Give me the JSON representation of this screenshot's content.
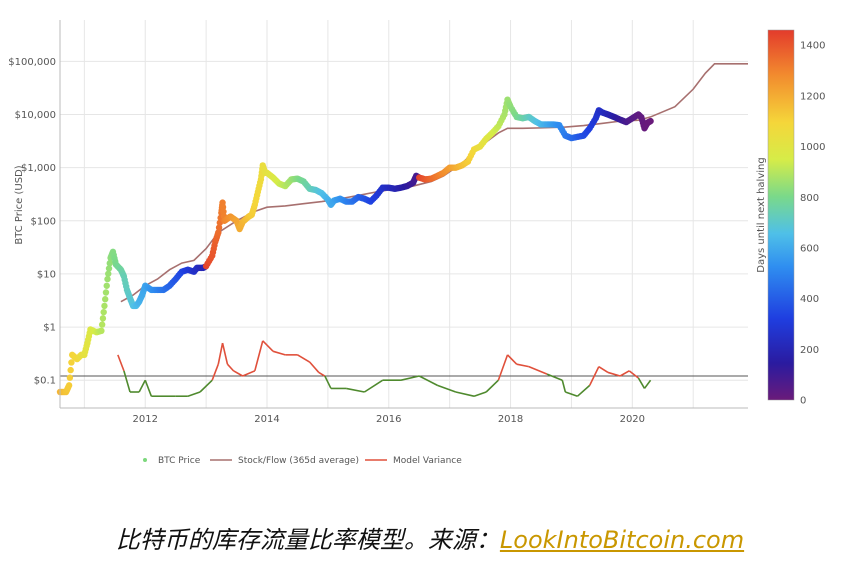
{
  "caption": {
    "text": "比特币的库存流量比率模型。来源：",
    "link": "LookIntoBitcoin.com"
  },
  "chart_data": {
    "type": "scatter",
    "title": "",
    "xlabel": "",
    "ylabel": "BTC Price (USD)",
    "y2label": "Days until next halving",
    "yscale": "log",
    "ylim": [
      0.03,
      600000
    ],
    "xlim": [
      2010.6,
      2021.9
    ],
    "x_ticks": [
      2012,
      2014,
      2016,
      2018,
      2020
    ],
    "x_tick_labels": [
      "2012",
      "2014",
      "2016",
      "2018",
      "2020"
    ],
    "y_ticks": [
      0.1,
      1,
      10,
      100,
      1000,
      10000,
      100000
    ],
    "y_tick_labels": [
      "$0.1",
      "$1",
      "$10",
      "$100",
      "$1,000",
      "$10,000",
      "$100,000"
    ],
    "colorbar": {
      "label": "Days until next halving",
      "range": [
        0,
        1460
      ],
      "ticks": [
        0,
        200,
        400,
        600,
        800,
        1000,
        1200,
        1400
      ]
    },
    "reference_line_y": 0.12,
    "grid": true,
    "legend_position": "bottom",
    "series": [
      {
        "name": "BTC Price",
        "type": "scatter",
        "color": "#7dd87d",
        "points": [
          [
            2010.6,
            0.06,
            1180
          ],
          [
            2010.7,
            0.06,
            1140
          ],
          [
            2010.75,
            0.08,
            1120
          ],
          [
            2010.8,
            0.3,
            1100
          ],
          [
            2010.88,
            0.25,
            1080
          ],
          [
            2010.95,
            0.3,
            1050
          ],
          [
            2011.0,
            0.3,
            1020
          ],
          [
            2011.05,
            0.5,
            1000
          ],
          [
            2011.1,
            0.9,
            980
          ],
          [
            2011.2,
            0.8,
            940
          ],
          [
            2011.28,
            0.85,
            900
          ],
          [
            2011.33,
            2.5,
            880
          ],
          [
            2011.38,
            8,
            860
          ],
          [
            2011.43,
            20,
            840
          ],
          [
            2011.47,
            26,
            820
          ],
          [
            2011.52,
            15,
            800
          ],
          [
            2011.6,
            12,
            770
          ],
          [
            2011.65,
            9,
            740
          ],
          [
            2011.7,
            5,
            720
          ],
          [
            2011.75,
            3.5,
            700
          ],
          [
            2011.8,
            2.5,
            670
          ],
          [
            2011.85,
            2.5,
            650
          ],
          [
            2011.9,
            3,
            620
          ],
          [
            2011.95,
            4,
            600
          ],
          [
            2012.0,
            6,
            580
          ],
          [
            2012.1,
            5,
            540
          ],
          [
            2012.2,
            5,
            500
          ],
          [
            2012.3,
            5,
            460
          ],
          [
            2012.4,
            6,
            420
          ],
          [
            2012.5,
            8,
            380
          ],
          [
            2012.6,
            11,
            340
          ],
          [
            2012.7,
            12,
            300
          ],
          [
            2012.8,
            11,
            260
          ],
          [
            2012.85,
            13,
            240
          ],
          [
            2012.95,
            13,
            200
          ],
          [
            2013.0,
            14,
            1440
          ],
          [
            2013.1,
            22,
            1400
          ],
          [
            2013.15,
            40,
            1380
          ],
          [
            2013.2,
            60,
            1350
          ],
          [
            2013.25,
            140,
            1320
          ],
          [
            2013.27,
            220,
            1310
          ],
          [
            2013.3,
            100,
            1300
          ],
          [
            2013.35,
            110,
            1280
          ],
          [
            2013.4,
            120,
            1260
          ],
          [
            2013.5,
            100,
            1220
          ],
          [
            2013.55,
            70,
            1200
          ],
          [
            2013.6,
            95,
            1180
          ],
          [
            2013.7,
            120,
            1140
          ],
          [
            2013.75,
            130,
            1120
          ],
          [
            2013.8,
            200,
            1100
          ],
          [
            2013.85,
            350,
            1080
          ],
          [
            2013.9,
            600,
            1060
          ],
          [
            2013.93,
            1100,
            1050
          ],
          [
            2013.97,
            800,
            1030
          ],
          [
            2014.0,
            800,
            1020
          ],
          [
            2014.1,
            650,
            980
          ],
          [
            2014.2,
            500,
            940
          ],
          [
            2014.3,
            450,
            900
          ],
          [
            2014.4,
            600,
            860
          ],
          [
            2014.5,
            620,
            820
          ],
          [
            2014.6,
            550,
            780
          ],
          [
            2014.7,
            400,
            740
          ],
          [
            2014.8,
            380,
            700
          ],
          [
            2014.9,
            330,
            660
          ],
          [
            2015.0,
            250,
            620
          ],
          [
            2015.05,
            200,
            600
          ],
          [
            2015.1,
            240,
            580
          ],
          [
            2015.2,
            260,
            540
          ],
          [
            2015.3,
            230,
            500
          ],
          [
            2015.4,
            230,
            460
          ],
          [
            2015.5,
            280,
            420
          ],
          [
            2015.6,
            260,
            380
          ],
          [
            2015.7,
            230,
            340
          ],
          [
            2015.8,
            300,
            300
          ],
          [
            2015.9,
            420,
            260
          ],
          [
            2016.0,
            420,
            230
          ],
          [
            2016.1,
            400,
            200
          ],
          [
            2016.2,
            420,
            170
          ],
          [
            2016.3,
            450,
            140
          ],
          [
            2016.4,
            520,
            100
          ],
          [
            2016.45,
            700,
            80
          ],
          [
            2016.5,
            650,
            1440
          ],
          [
            2016.6,
            600,
            1400
          ],
          [
            2016.7,
            620,
            1360
          ],
          [
            2016.8,
            700,
            1320
          ],
          [
            2016.9,
            800,
            1280
          ],
          [
            2017.0,
            1000,
            1240
          ],
          [
            2017.1,
            1000,
            1200
          ],
          [
            2017.2,
            1100,
            1160
          ],
          [
            2017.3,
            1300,
            1120
          ],
          [
            2017.4,
            2200,
            1080
          ],
          [
            2017.5,
            2500,
            1040
          ],
          [
            2017.6,
            3500,
            1000
          ],
          [
            2017.7,
            4500,
            960
          ],
          [
            2017.8,
            6000,
            920
          ],
          [
            2017.9,
            10000,
            880
          ],
          [
            2017.95,
            19000,
            860
          ],
          [
            2018.0,
            14000,
            840
          ],
          [
            2018.1,
            9000,
            800
          ],
          [
            2018.2,
            8500,
            760
          ],
          [
            2018.3,
            9000,
            720
          ],
          [
            2018.4,
            7500,
            680
          ],
          [
            2018.5,
            6500,
            640
          ],
          [
            2018.6,
            6500,
            600
          ],
          [
            2018.7,
            6500,
            560
          ],
          [
            2018.8,
            6300,
            520
          ],
          [
            2018.9,
            4000,
            480
          ],
          [
            2019.0,
            3600,
            440
          ],
          [
            2019.1,
            3800,
            400
          ],
          [
            2019.2,
            4000,
            360
          ],
          [
            2019.3,
            5500,
            320
          ],
          [
            2019.4,
            8500,
            280
          ],
          [
            2019.45,
            12000,
            260
          ],
          [
            2019.5,
            11000,
            240
          ],
          [
            2019.6,
            10000,
            200
          ],
          [
            2019.7,
            9000,
            160
          ],
          [
            2019.8,
            8000,
            120
          ],
          [
            2019.9,
            7200,
            80
          ],
          [
            2020.0,
            8500,
            50
          ],
          [
            2020.1,
            10000,
            30
          ],
          [
            2020.15,
            8800,
            20
          ],
          [
            2020.2,
            5500,
            10
          ],
          [
            2020.25,
            7000,
            5
          ],
          [
            2020.3,
            7500,
            2
          ]
        ]
      },
      {
        "name": "Stock/Flow (365d average)",
        "type": "line",
        "color": "#a7706f",
        "points": [
          [
            2011.6,
            3
          ],
          [
            2011.8,
            4
          ],
          [
            2012.0,
            6
          ],
          [
            2012.2,
            8
          ],
          [
            2012.4,
            12
          ],
          [
            2012.6,
            16
          ],
          [
            2012.8,
            18
          ],
          [
            2013.0,
            30
          ],
          [
            2013.2,
            60
          ],
          [
            2013.5,
            100
          ],
          [
            2013.8,
            150
          ],
          [
            2014.0,
            180
          ],
          [
            2014.3,
            190
          ],
          [
            2014.6,
            210
          ],
          [
            2014.9,
            230
          ],
          [
            2015.2,
            260
          ],
          [
            2015.5,
            300
          ],
          [
            2015.8,
            350
          ],
          [
            2016.1,
            400
          ],
          [
            2016.4,
            450
          ],
          [
            2016.7,
            550
          ],
          [
            2016.9,
            700
          ],
          [
            2017.2,
            1200
          ],
          [
            2017.5,
            2500
          ],
          [
            2017.8,
            4500
          ],
          [
            2017.95,
            5500
          ],
          [
            2018.2,
            5500
          ],
          [
            2018.5,
            5600
          ],
          [
            2018.9,
            5800
          ],
          [
            2019.2,
            6200
          ],
          [
            2019.5,
            6800
          ],
          [
            2019.8,
            7500
          ],
          [
            2020.1,
            7800
          ],
          [
            2020.3,
            9000
          ],
          [
            2020.7,
            14000
          ],
          [
            2021.0,
            30000
          ],
          [
            2021.2,
            60000
          ],
          [
            2021.35,
            90000
          ],
          [
            2021.9,
            90000
          ]
        ]
      },
      {
        "name": "Model Variance",
        "type": "line",
        "color": "#e0503b",
        "points": [
          [
            2011.55,
            0.3
          ],
          [
            2011.65,
            0.15
          ],
          [
            2011.75,
            0.06
          ],
          [
            2011.9,
            0.06
          ],
          [
            2012.0,
            0.1
          ],
          [
            2012.1,
            0.05
          ],
          [
            2012.3,
            0.05
          ],
          [
            2012.5,
            0.05
          ],
          [
            2012.7,
            0.05
          ],
          [
            2012.9,
            0.06
          ],
          [
            2013.1,
            0.1
          ],
          [
            2013.2,
            0.2
          ],
          [
            2013.27,
            0.5
          ],
          [
            2013.35,
            0.2
          ],
          [
            2013.45,
            0.15
          ],
          [
            2013.6,
            0.12
          ],
          [
            2013.8,
            0.15
          ],
          [
            2013.93,
            0.55
          ],
          [
            2014.1,
            0.35
          ],
          [
            2014.3,
            0.3
          ],
          [
            2014.5,
            0.3
          ],
          [
            2014.7,
            0.22
          ],
          [
            2014.85,
            0.14
          ],
          [
            2014.95,
            0.12
          ],
          [
            2015.05,
            0.07
          ],
          [
            2015.3,
            0.07
          ],
          [
            2015.6,
            0.06
          ],
          [
            2015.9,
            0.1
          ],
          [
            2016.2,
            0.1
          ],
          [
            2016.5,
            0.12
          ],
          [
            2016.8,
            0.08
          ],
          [
            2017.1,
            0.06
          ],
          [
            2017.4,
            0.05
          ],
          [
            2017.6,
            0.06
          ],
          [
            2017.8,
            0.1
          ],
          [
            2017.95,
            0.3
          ],
          [
            2018.1,
            0.2
          ],
          [
            2018.3,
            0.18
          ],
          [
            2018.6,
            0.13
          ],
          [
            2018.85,
            0.1
          ],
          [
            2018.9,
            0.06
          ],
          [
            2019.1,
            0.05
          ],
          [
            2019.3,
            0.08
          ],
          [
            2019.45,
            0.18
          ],
          [
            2019.6,
            0.14
          ],
          [
            2019.8,
            0.12
          ],
          [
            2019.95,
            0.15
          ],
          [
            2020.1,
            0.11
          ],
          [
            2020.2,
            0.07
          ],
          [
            2020.3,
            0.1
          ]
        ]
      }
    ]
  }
}
